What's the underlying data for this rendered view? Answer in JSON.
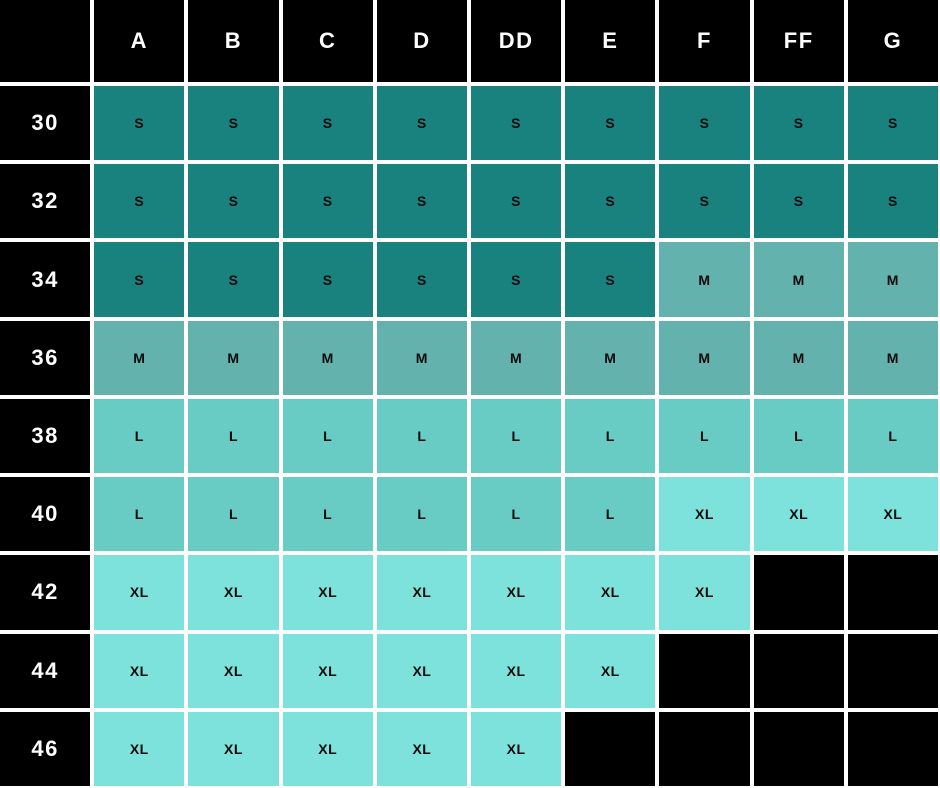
{
  "style": {
    "header_bg": "#000000",
    "header_text": "#ffffff",
    "cell_text": "#0a0a0a",
    "empty_cell_color": "#000000",
    "grid_gap_color": "#ffffff",
    "size_colors": {
      "S": "#1a827e",
      "M": "#63b2ad",
      "L": "#68cbc4",
      "XL": "#7ce2db"
    }
  },
  "chart_data": {
    "type": "table",
    "corner_label": "",
    "columns": [
      "A",
      "B",
      "C",
      "D",
      "DD",
      "E",
      "F",
      "FF",
      "G"
    ],
    "rows": [
      {
        "label": "30",
        "cells": [
          "S",
          "S",
          "S",
          "S",
          "S",
          "S",
          "S",
          "S",
          "S"
        ]
      },
      {
        "label": "32",
        "cells": [
          "S",
          "S",
          "S",
          "S",
          "S",
          "S",
          "S",
          "S",
          "S"
        ]
      },
      {
        "label": "34",
        "cells": [
          "S",
          "S",
          "S",
          "S",
          "S",
          "S",
          "M",
          "M",
          "M"
        ]
      },
      {
        "label": "36",
        "cells": [
          "M",
          "M",
          "M",
          "M",
          "M",
          "M",
          "M",
          "M",
          "M"
        ]
      },
      {
        "label": "38",
        "cells": [
          "L",
          "L",
          "L",
          "L",
          "L",
          "L",
          "L",
          "L",
          "L"
        ]
      },
      {
        "label": "40",
        "cells": [
          "L",
          "L",
          "L",
          "L",
          "L",
          "L",
          "XL",
          "XL",
          "XL"
        ]
      },
      {
        "label": "42",
        "cells": [
          "XL",
          "XL",
          "XL",
          "XL",
          "XL",
          "XL",
          "XL",
          "",
          ""
        ]
      },
      {
        "label": "44",
        "cells": [
          "XL",
          "XL",
          "XL",
          "XL",
          "XL",
          "XL",
          "",
          "",
          ""
        ]
      },
      {
        "label": "46",
        "cells": [
          "XL",
          "XL",
          "XL",
          "XL",
          "XL",
          "",
          "",
          "",
          ""
        ]
      }
    ]
  }
}
